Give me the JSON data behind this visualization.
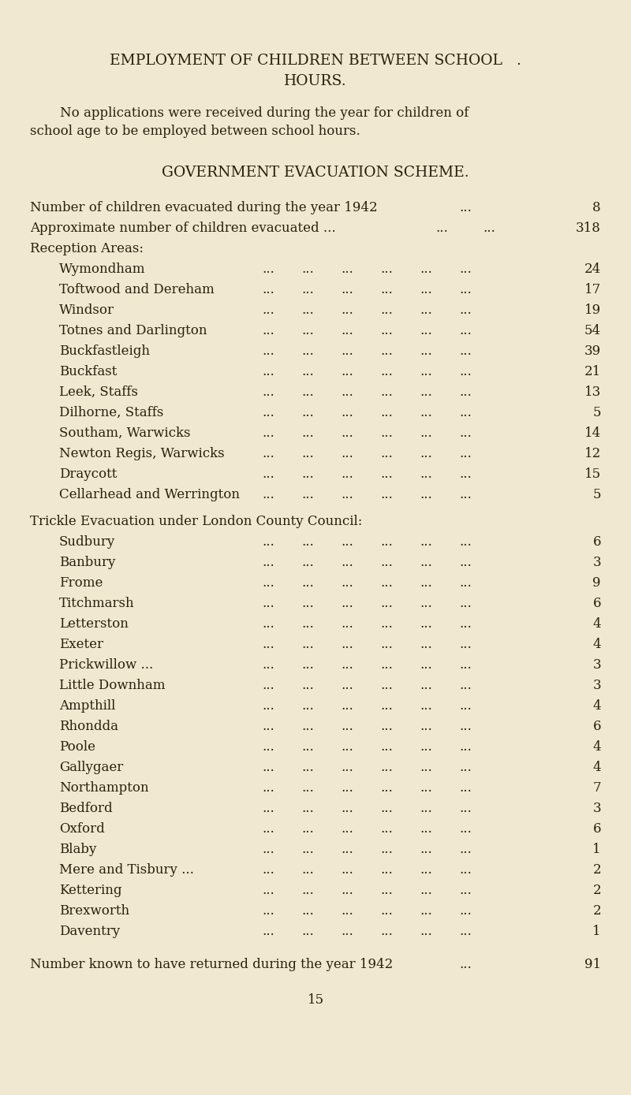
{
  "bg_color": "#f0e8d0",
  "text_color": "#2a1f0e",
  "title1": "EMPLOYMENT OF CHILDREN BETWEEN SCHOOL   .",
  "title2": "HOURS.",
  "para_line1": "    No applications were received during the year for children of",
  "para_line2": "school age to be employed between school hours.",
  "section_title": "GOVERNMENT EVACUATION SCHEME.",
  "sum_row1_label": "Number of children evacuated during the year 1942",
  "sum_row1_dots": "...",
  "sum_row1_val": "8",
  "sum_row2_label": "Approximate number of children evacuated ...",
  "sum_row2_dots1": "...",
  "sum_row2_dots2": "...",
  "sum_row2_val": "318",
  "reception_header": "Reception Areas:",
  "reception_rows": [
    [
      "Wymondham",
      "24"
    ],
    [
      "Toftwood and Dereham",
      "17"
    ],
    [
      "Windsor",
      "19"
    ],
    [
      "Totnes and Darlington",
      "54"
    ],
    [
      "Buckfastleigh",
      "39"
    ],
    [
      "Buckfast",
      "21"
    ],
    [
      "Leek, Staffs",
      "13"
    ],
    [
      "Dilhorne, Staffs",
      "5"
    ],
    [
      "Southam, Warwicks",
      "14"
    ],
    [
      "Newton Regis, Warwicks",
      "12"
    ],
    [
      "Draycott",
      "15"
    ],
    [
      "Cellarhead and Werrington",
      "5"
    ]
  ],
  "trickle_header": "Trickle Evacuation under London County Council:",
  "trickle_rows": [
    [
      "Sudbury",
      "6"
    ],
    [
      "Banbury",
      "3"
    ],
    [
      "Frome",
      "9"
    ],
    [
      "Titchmarsh",
      "6"
    ],
    [
      "Letterston",
      "4"
    ],
    [
      "Exeter",
      "4"
    ],
    [
      "Prickwillow ...",
      "3"
    ],
    [
      "Little Downham",
      "3"
    ],
    [
      "Ampthill",
      "4"
    ],
    [
      "Rhondda",
      "6"
    ],
    [
      "Poole",
      "4"
    ],
    [
      "Gallygaer",
      "4"
    ],
    [
      "Northampton",
      "7"
    ],
    [
      "Bedford",
      "3"
    ],
    [
      "Oxford",
      "6"
    ],
    [
      "Blaby",
      "1"
    ],
    [
      "Mere and Tisbury ...",
      "2"
    ],
    [
      "Kettering",
      "2"
    ],
    [
      "Brexworth",
      "2"
    ],
    [
      "Daventry",
      "1"
    ]
  ],
  "footer_label": "Number known to have returned during the year 1942",
  "footer_dots": "...",
  "footer_val": "91",
  "page_number": "15",
  "title_fontsize": 13.5,
  "body_fontsize": 12.0,
  "small_fontsize": 11.5
}
